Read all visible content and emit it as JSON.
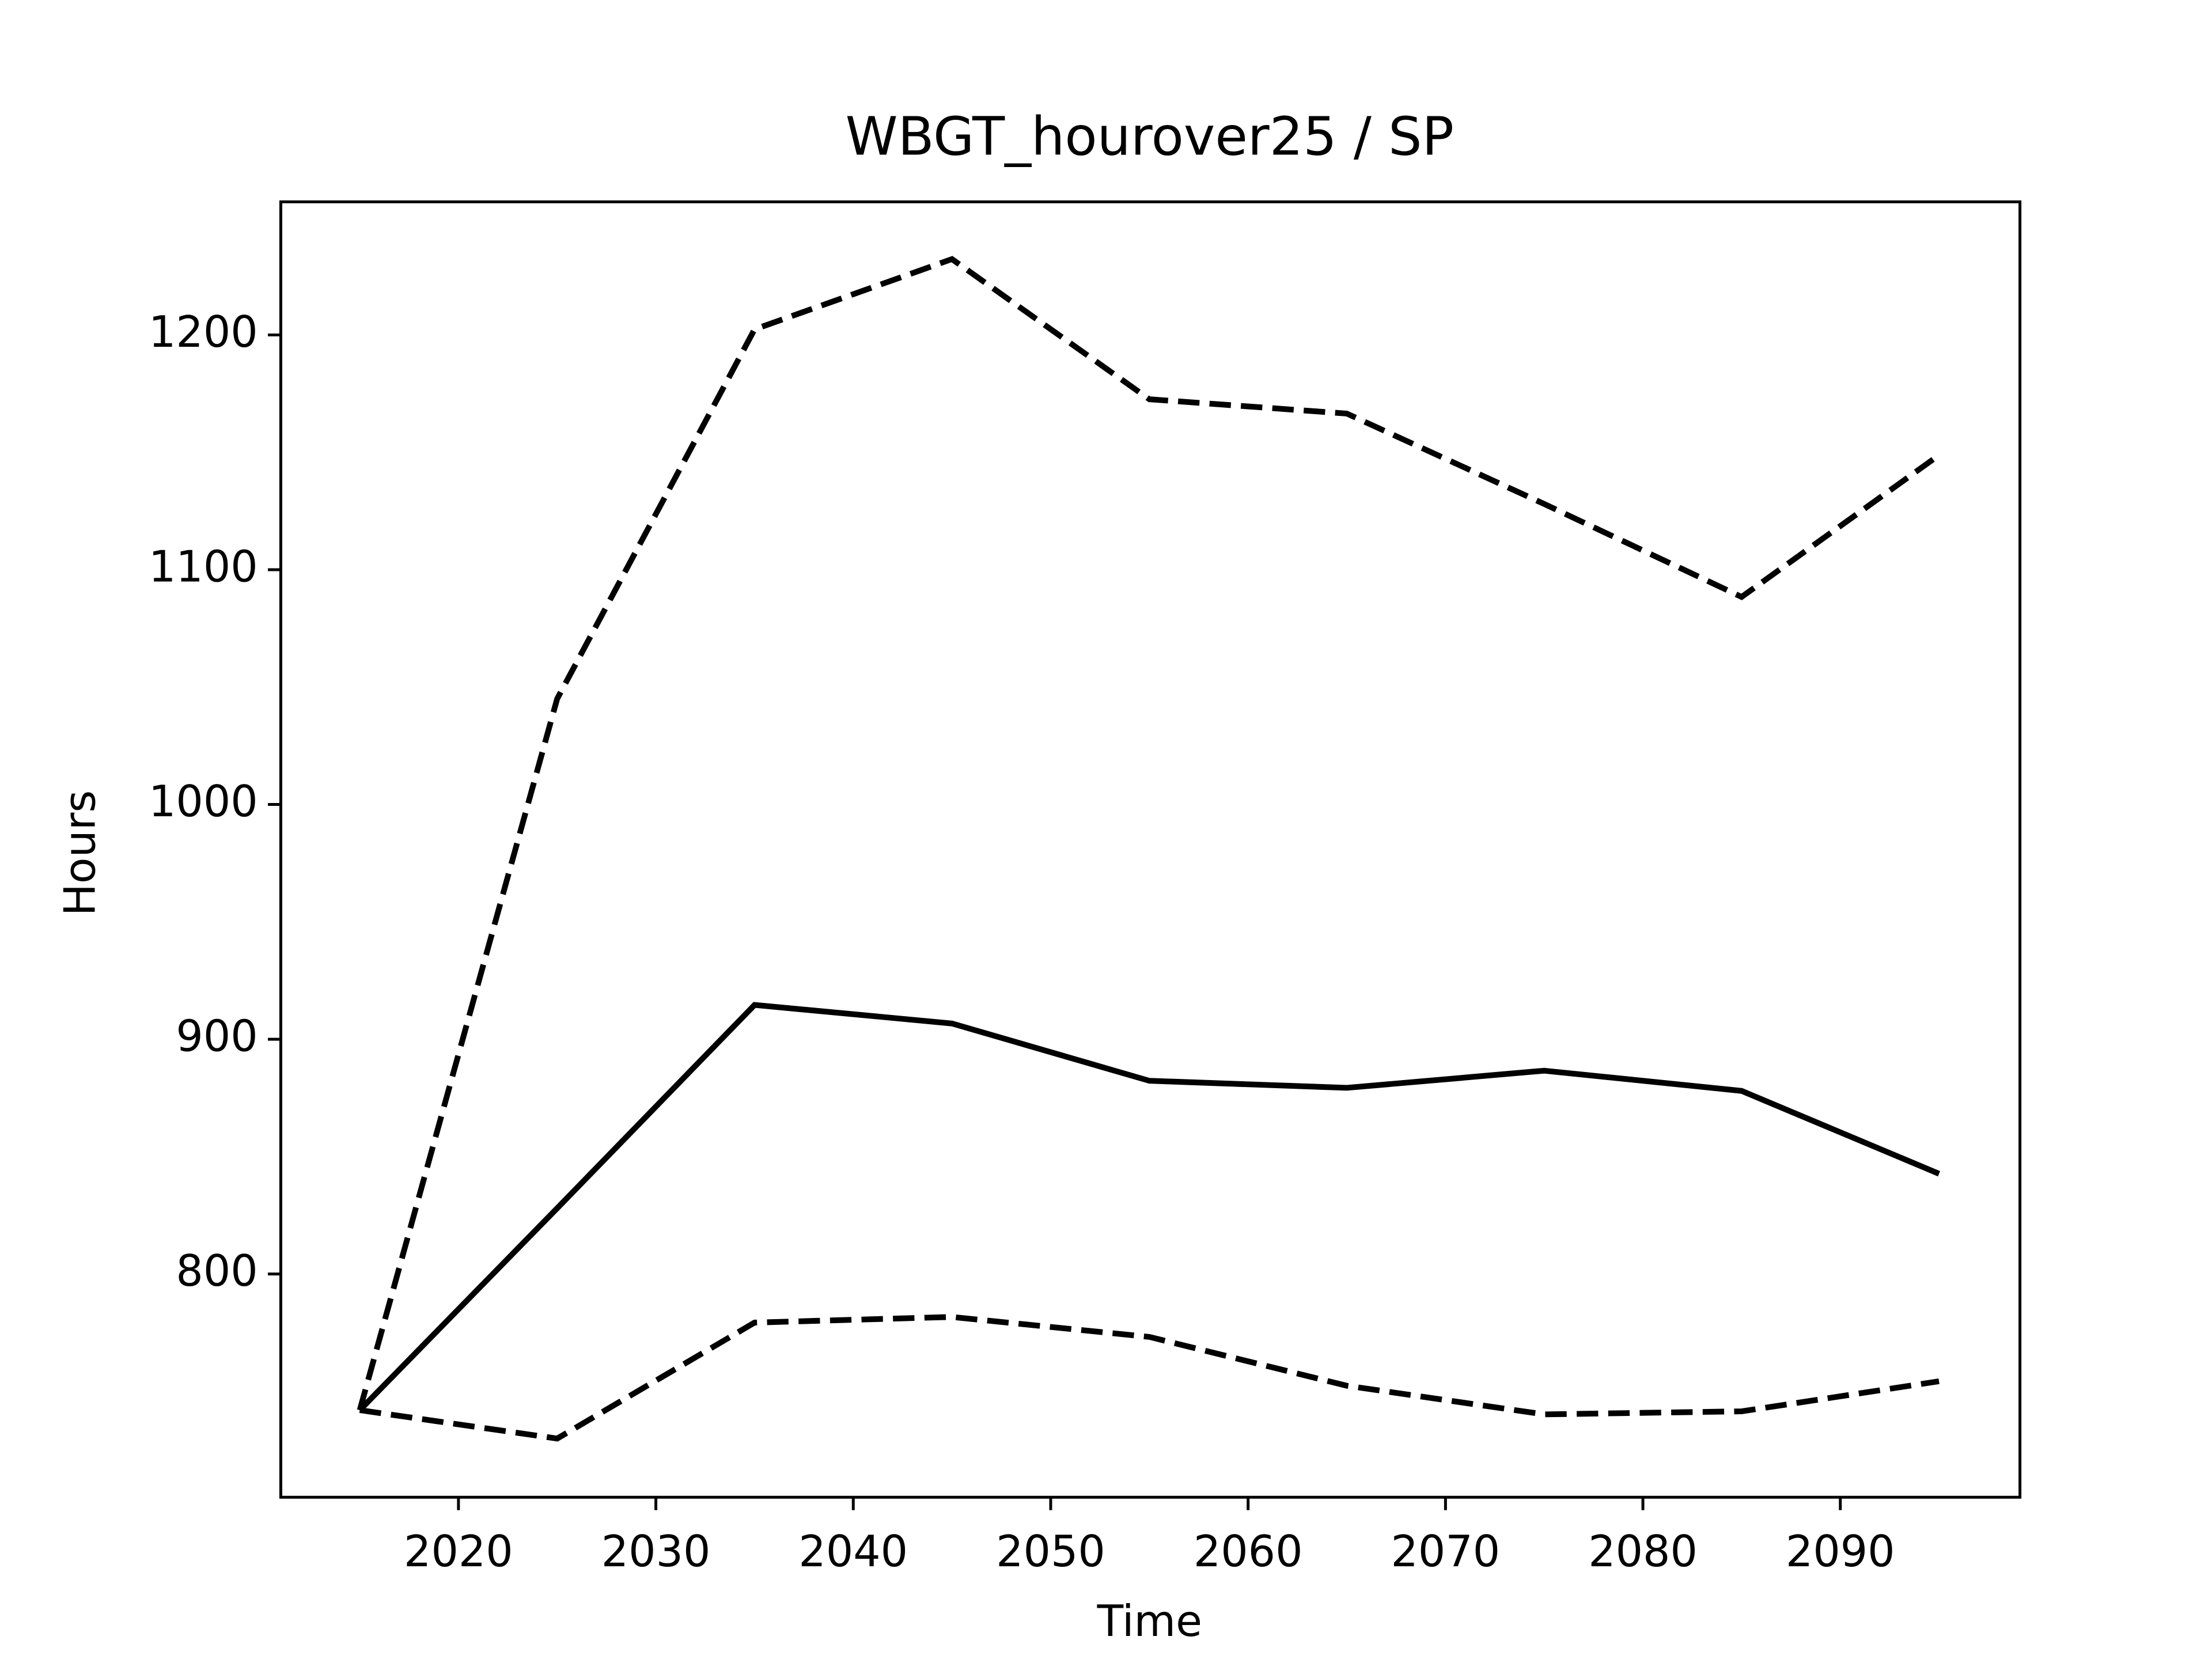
{
  "chart_data": {
    "type": "line",
    "title": "WBGT_hourover25 / SP",
    "x_label": "Time",
    "y_label": "Hours",
    "x": [
      2015,
      2025,
      2035,
      2045,
      2055,
      2065,
      2075,
      2085,
      2095
    ],
    "series": [
      {
        "color": "#000000",
        "linestyle": "solid",
        "values": [
          742,
          828,
          914.6,
          906.7,
          882.3,
          879.3,
          886.6,
          878,
          842.7
        ]
      },
      {
        "color": "#000000",
        "linestyle": "dashed",
        "values": [
          742,
          1045,
          1202.4,
          1232.3,
          1172.6,
          1166.5,
          1128,
          1088.4,
          1148.8
        ]
      },
      {
        "color": "#000000",
        "linestyle": "dashed",
        "values": [
          742,
          729.9,
          779.3,
          781.7,
          773.2,
          752.4,
          740.2,
          741.5,
          754.3
        ]
      }
    ],
    "xlim": [
      2011,
      2099.1
    ],
    "xticks": [
      2020,
      2030,
      2040,
      2050,
      2060,
      2070,
      2080,
      2090
    ],
    "ylim": [
      704.9,
      1256.7
    ],
    "yticks": [
      800,
      900,
      1000,
      1100,
      1200
    ],
    "grid": false
  }
}
